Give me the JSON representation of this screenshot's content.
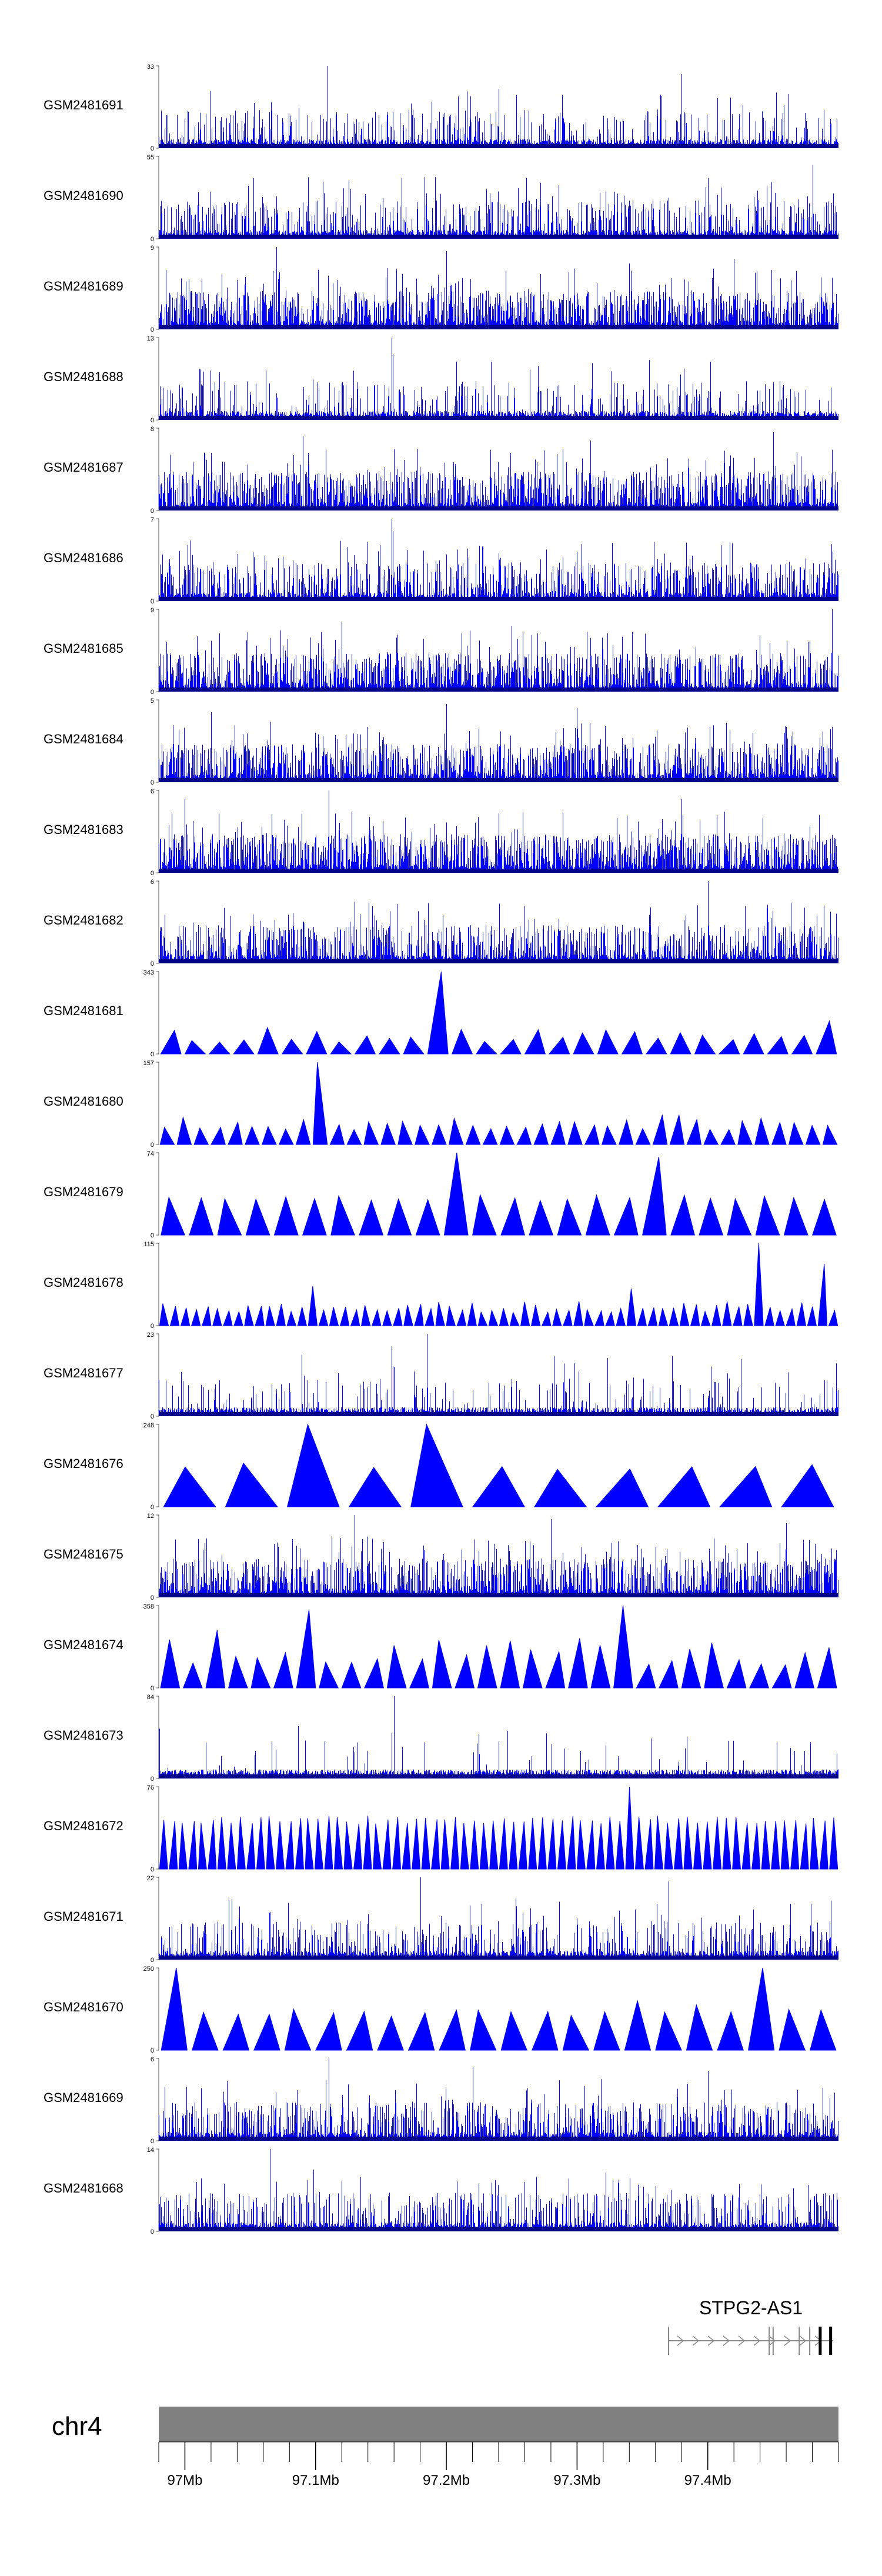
{
  "chart_data": {
    "type": "area",
    "chromosome": "chr4",
    "region_mb": [
      96.98,
      97.5
    ],
    "tracks": [
      {
        "name": "GSM2481691",
        "ymax": 33,
        "style": "dense",
        "density": 0.22,
        "peaks": [
          [
            97.109,
            1.0
          ],
          [
            97.24,
            0.72
          ],
          [
            97.38,
            0.9
          ],
          [
            97.29,
            0.32
          ],
          [
            97.0,
            0.35
          ]
        ]
      },
      {
        "name": "GSM2481690",
        "ymax": 55,
        "style": "dense",
        "density": 0.32,
        "peaks": [
          [
            97.48,
            0.9
          ],
          [
            97.37,
            0.5
          ],
          [
            97.1,
            0.45
          ],
          [
            97.21,
            0.42
          ]
        ]
      },
      {
        "name": "GSM2481689",
        "ymax": 9,
        "style": "dense",
        "density": 0.55,
        "peaks": [
          [
            97.07,
            1.0
          ],
          [
            97.2,
            0.95
          ],
          [
            97.42,
            0.85
          ],
          [
            97.34,
            0.8
          ]
        ]
      },
      {
        "name": "GSM2481688",
        "ymax": 13,
        "style": "dense",
        "density": 0.18,
        "peaks": [
          [
            97.158,
            1.0
          ],
          [
            97.159,
            0.8
          ],
          [
            97.4,
            0.35
          ],
          [
            97.05,
            0.3
          ]
        ]
      },
      {
        "name": "GSM2481687",
        "ymax": 8,
        "style": "dense",
        "density": 0.55,
        "peaks": [
          [
            97.45,
            0.95
          ],
          [
            97.09,
            0.9
          ],
          [
            97.31,
            0.85
          ]
        ]
      },
      {
        "name": "GSM2481686",
        "ymax": 7,
        "style": "dense",
        "density": 0.45,
        "peaks": [
          [
            97.158,
            1.0
          ],
          [
            97.159,
            0.85
          ],
          [
            97.3,
            0.6
          ]
        ]
      },
      {
        "name": "GSM2481685",
        "ymax": 9,
        "style": "dense",
        "density": 0.55,
        "peaks": [
          [
            97.495,
            1.0
          ],
          [
            97.12,
            0.85
          ],
          [
            97.25,
            0.8
          ]
        ]
      },
      {
        "name": "GSM2481684",
        "ymax": 5,
        "style": "dense",
        "density": 0.55,
        "peaks": [
          [
            97.2,
            0.95
          ],
          [
            97.3,
            0.9
          ],
          [
            97.02,
            0.85
          ]
        ]
      },
      {
        "name": "GSM2481683",
        "ymax": 6,
        "style": "dense",
        "density": 0.6,
        "peaks": [
          [
            97.11,
            1.0
          ],
          [
            97.38,
            0.9
          ],
          [
            97.0,
            0.9
          ]
        ]
      },
      {
        "name": "GSM2481682",
        "ymax": 6,
        "style": "dense",
        "density": 0.45,
        "peaks": [
          [
            97.4,
            1.0
          ],
          [
            97.13,
            0.75
          ],
          [
            97.26,
            0.7
          ]
        ]
      },
      {
        "name": "GSM2481681",
        "ymax": 343,
        "style": "tri",
        "n": 28,
        "minh": 0.14,
        "maxh": 0.3,
        "peaks": [
          [
            97.195,
            1.0
          ],
          [
            97.5,
            0.4
          ],
          [
            97.06,
            0.32
          ]
        ]
      },
      {
        "name": "GSM2481680",
        "ymax": 157,
        "style": "tri",
        "n": 40,
        "minh": 0.18,
        "maxh": 0.32,
        "peaks": [
          [
            97.098,
            1.0
          ],
          [
            97.37,
            0.36
          ],
          [
            97.0,
            0.33
          ]
        ]
      },
      {
        "name": "GSM2481679",
        "ymax": 74,
        "style": "tri",
        "n": 24,
        "minh": 0.42,
        "maxh": 0.5,
        "peaks": [
          [
            97.2,
            1.0
          ],
          [
            97.355,
            0.95
          ]
        ]
      },
      {
        "name": "GSM2481678",
        "ymax": 115,
        "style": "tri",
        "n": 64,
        "minh": 0.16,
        "maxh": 0.3,
        "peaks": [
          [
            97.44,
            1.0
          ],
          [
            97.49,
            0.75
          ],
          [
            97.34,
            0.45
          ],
          [
            97.1,
            0.48
          ]
        ]
      },
      {
        "name": "GSM2481677",
        "ymax": 23,
        "style": "dense",
        "density": 0.12,
        "peaks": [
          [
            97.158,
            0.85
          ],
          [
            97.185,
            1.0
          ],
          [
            97.5,
            0.95
          ],
          [
            97.16,
            0.6
          ],
          [
            97.25,
            0.45
          ]
        ]
      },
      {
        "name": "GSM2481676",
        "ymax": 248,
        "style": "tri",
        "n": 11,
        "minh": 0.45,
        "maxh": 0.55,
        "peaks": [
          [
            97.08,
            1.0
          ],
          [
            97.2,
            1.0
          ]
        ]
      },
      {
        "name": "GSM2481675",
        "ymax": 12,
        "style": "dense",
        "density": 0.55,
        "peaks": [
          [
            97.13,
            1.0
          ],
          [
            97.28,
            0.95
          ],
          [
            97.46,
            0.9
          ]
        ]
      },
      {
        "name": "GSM2481674",
        "ymax": 358,
        "style": "tri",
        "n": 30,
        "minh": 0.28,
        "maxh": 0.62,
        "peaks": [
          [
            97.02,
            0.7
          ],
          [
            97.09,
            0.95
          ],
          [
            97.34,
            1.0
          ]
        ]
      },
      {
        "name": "GSM2481673",
        "ymax": 84,
        "style": "dense",
        "density": 0.04,
        "peaks": [
          [
            97.16,
            1.0
          ],
          [
            97.158,
            0.55
          ],
          [
            97.24,
            0.45
          ],
          [
            97.13,
            0.32
          ]
        ]
      },
      {
        "name": "GSM2481672",
        "ymax": 76,
        "style": "tri",
        "n": 70,
        "minh": 0.55,
        "maxh": 0.65,
        "peaks": [
          [
            97.34,
            1.0
          ]
        ]
      },
      {
        "name": "GSM2481671",
        "ymax": 22,
        "style": "dense",
        "density": 0.3,
        "peaks": [
          [
            97.18,
            1.0
          ],
          [
            97.37,
            0.95
          ],
          [
            97.14,
            0.55
          ],
          [
            97.3,
            0.5
          ]
        ]
      },
      {
        "name": "GSM2481670",
        "ymax": 250,
        "style": "tri",
        "n": 22,
        "minh": 0.4,
        "maxh": 0.5,
        "peaks": [
          [
            96.995,
            1.0
          ],
          [
            97.43,
            1.0
          ],
          [
            97.34,
            0.6
          ],
          [
            97.39,
            0.55
          ]
        ]
      },
      {
        "name": "GSM2481669",
        "ymax": 6,
        "style": "dense",
        "density": 0.45,
        "peaks": [
          [
            97.11,
            1.0
          ],
          [
            97.22,
            0.9
          ],
          [
            97.4,
            0.85
          ]
        ]
      },
      {
        "name": "GSM2481668",
        "ymax": 14,
        "style": "dense",
        "density": 0.3,
        "peaks": [
          [
            97.065,
            1.0
          ],
          [
            97.26,
            0.6
          ],
          [
            97.36,
            0.55
          ]
        ]
      }
    ],
    "gene": {
      "name": "STPG2-AS1",
      "start_mb": 97.37,
      "end_mb": 97.496,
      "strand": "+",
      "exons_mb": [
        97.37,
        97.447,
        97.45,
        97.47,
        97.478,
        97.486,
        97.494
      ]
    },
    "axis": {
      "ticks_mb": [
        97.0,
        97.1,
        97.2,
        97.3,
        97.4
      ],
      "tick_labels": [
        "97Mb",
        "97.1Mb",
        "97.2Mb",
        "97.3Mb",
        "97.4Mb"
      ],
      "minor_step_mb": 0.02
    }
  },
  "colors": {
    "signal": "#0000ff",
    "signal_dark": "#00008b",
    "ideogram": "#808080",
    "axis": "#000000",
    "gene": "#888888"
  }
}
